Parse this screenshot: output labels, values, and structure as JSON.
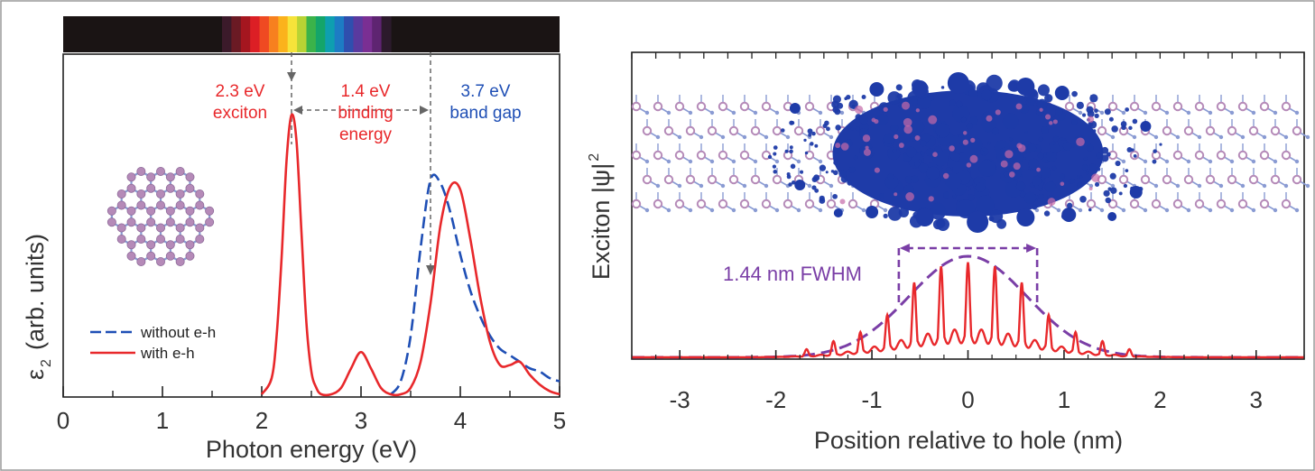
{
  "colors": {
    "red": "#e8282b",
    "blue": "#1f4fb5",
    "purple": "#7a3ea6",
    "exciton_blue": "#1e3ba8",
    "lattice_pink": "#b58ab8",
    "lattice_blue": "#8a9bd3",
    "spectrum_bar": "#1a1414"
  },
  "chart_data": [
    {
      "type": "line",
      "xlabel": "Photon energy (eV)",
      "ylabel_main": "ε",
      "ylabel_sub": "2",
      "ylabel_rest": "(arb. units)",
      "xlim": [
        0,
        5
      ],
      "ylim": [
        0,
        1
      ],
      "xticks": [
        "0",
        "1",
        "2",
        "3",
        "4",
        "5"
      ],
      "minor_xticks": [
        0.5,
        1.5,
        2.5,
        3.5,
        4.5
      ],
      "spectrum_bar": {
        "visible_range_ev": [
          1.6,
          3.3
        ]
      },
      "series": [
        {
          "name": "without e-h",
          "style": "dashed",
          "color": "#1f4fb5",
          "x": [
            3.3,
            3.4,
            3.5,
            3.6,
            3.7,
            3.8,
            3.9,
            4.0,
            4.1,
            4.2,
            4.3,
            4.4,
            4.5,
            4.6,
            4.7,
            4.8,
            4.9,
            5.0
          ],
          "y": [
            0.0,
            0.04,
            0.18,
            0.45,
            0.66,
            0.65,
            0.56,
            0.43,
            0.32,
            0.24,
            0.18,
            0.14,
            0.12,
            0.1,
            0.08,
            0.07,
            0.05,
            0.04
          ]
        },
        {
          "name": "with e-h",
          "style": "solid",
          "color": "#e8282b",
          "x": [
            2.0,
            2.1,
            2.15,
            2.2,
            2.25,
            2.3,
            2.35,
            2.4,
            2.45,
            2.5,
            2.55,
            2.6,
            2.7,
            2.8,
            2.9,
            3.0,
            3.1,
            3.2,
            3.3,
            3.4,
            3.5,
            3.6,
            3.7,
            3.8,
            3.9,
            4.0,
            4.1,
            4.2,
            4.3,
            4.4,
            4.5,
            4.6,
            4.7,
            4.8,
            4.9,
            5.0
          ],
          "y": [
            0.0,
            0.05,
            0.18,
            0.42,
            0.72,
            0.86,
            0.78,
            0.5,
            0.22,
            0.07,
            0.02,
            0.0,
            0.0,
            0.02,
            0.08,
            0.13,
            0.08,
            0.02,
            0.0,
            0.0,
            0.02,
            0.1,
            0.28,
            0.52,
            0.64,
            0.63,
            0.48,
            0.3,
            0.16,
            0.09,
            0.09,
            0.1,
            0.06,
            0.03,
            0.01,
            0.0
          ]
        }
      ],
      "annotations": [
        {
          "lines": [
            "2.3 eV",
            "exciton"
          ],
          "color": "red"
        },
        {
          "lines": [
            "1.4 eV",
            "binding",
            "energy"
          ],
          "color": "red"
        },
        {
          "lines": [
            "3.7 eV",
            "band gap"
          ],
          "color": "blue"
        }
      ],
      "markers_ev": [
        2.3,
        3.7
      ]
    },
    {
      "type": "line",
      "xlabel": "Position relative to hole (nm)",
      "ylabel": "Exciton |ψ|",
      "ylabel_sup": "2",
      "xlim": [
        -3.5,
        3.5
      ],
      "ylim": [
        0,
        1
      ],
      "xticks": [
        "-3",
        "-2",
        "-1",
        "0",
        "1",
        "2",
        "3"
      ],
      "fwhm_label": "1.44 nm FWHM",
      "fwhm_range_nm": [
        -0.72,
        0.72
      ],
      "series": [
        {
          "name": "envelope",
          "style": "dashed",
          "color": "#7a3ea6",
          "sigma_nm": 0.61,
          "amplitude": 1.0
        },
        {
          "name": "exciton density",
          "style": "solid",
          "color": "#e8282b",
          "peaks_nm": [
            -1.68,
            -1.4,
            -1.12,
            -0.84,
            -0.56,
            -0.28,
            0.0,
            0.28,
            0.56,
            0.84,
            1.12,
            1.4,
            1.68
          ],
          "peak_heights": [
            0.08,
            0.16,
            0.25,
            0.42,
            0.74,
            0.9,
            0.94,
            0.9,
            0.74,
            0.42,
            0.25,
            0.16,
            0.08
          ]
        }
      ]
    }
  ]
}
